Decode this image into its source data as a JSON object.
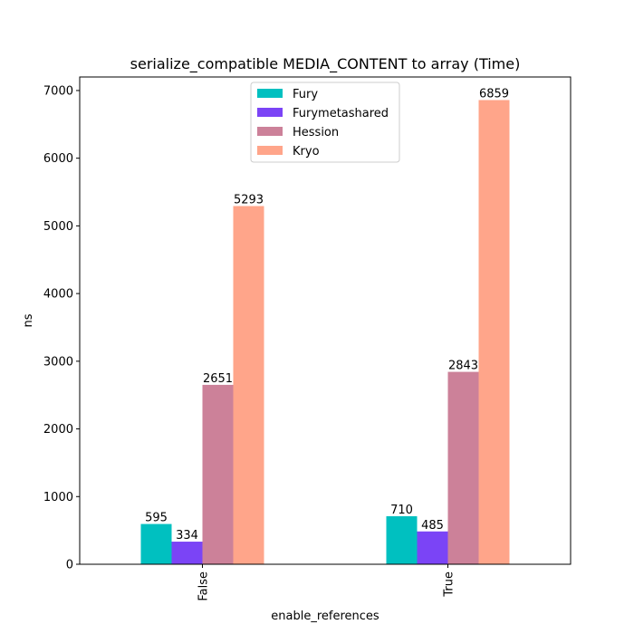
{
  "chart_data": {
    "type": "bar",
    "title": "serialize_compatible MEDIA_CONTENT to array (Time)",
    "xlabel": "enable_references",
    "ylabel": "ns",
    "categories": [
      "False",
      "True"
    ],
    "ylim": [
      0,
      7200
    ],
    "yticks": [
      0,
      1000,
      2000,
      3000,
      4000,
      5000,
      6000,
      7000
    ],
    "legend_position": "top-center",
    "grid": false,
    "series": [
      {
        "name": "Fury",
        "color": "#00c0c0",
        "values": [
          595,
          710
        ]
      },
      {
        "name": "Furymetashared",
        "color": "#7b44f6",
        "values": [
          334,
          485
        ]
      },
      {
        "name": "Hession",
        "color": "#cc8199",
        "values": [
          2651,
          2843
        ]
      },
      {
        "name": "Kryo",
        "color": "#ffa58a",
        "values": [
          5293,
          6859
        ]
      }
    ]
  }
}
